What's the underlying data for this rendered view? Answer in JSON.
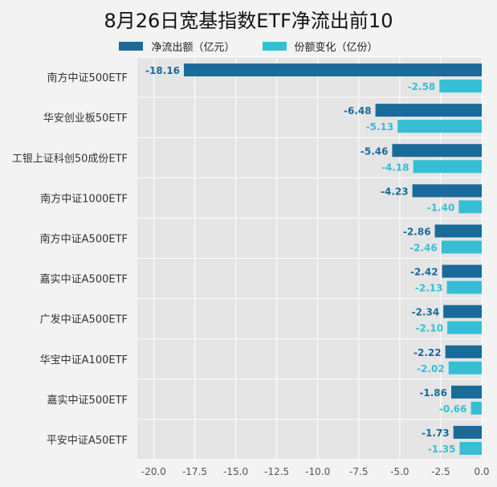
{
  "chart_data": {
    "type": "bar",
    "orientation": "horizontal",
    "title": "8月26日宽基指数ETF净流出前10",
    "categories": [
      "南方中证500ETF",
      "华安创业板50ETF",
      "工银上证科创50成份ETF",
      "南方中证1000ETF",
      "南方中证A500ETF",
      "嘉实中证A500ETF",
      "广发中证A500ETF",
      "华宝中证A100ETF",
      "嘉实中证500ETF",
      "平安中证A50ETF"
    ],
    "series": [
      {
        "name": "净流出额（亿元）",
        "color": "#1a6a9a",
        "values": [
          -18.16,
          -6.48,
          -5.46,
          -4.23,
          -2.86,
          -2.42,
          -2.34,
          -2.22,
          -1.86,
          -1.73
        ]
      },
      {
        "name": "份额变化（亿份）",
        "color": "#36bfd4",
        "values": [
          -2.58,
          -5.13,
          -4.18,
          -1.4,
          -2.46,
          -2.13,
          -2.1,
          -2.02,
          -0.66,
          -1.35
        ]
      }
    ],
    "xlim": [
      -21,
      0
    ],
    "xticks": [
      "-20.0",
      "-17.5",
      "-15.0",
      "-12.5",
      "-10.0",
      "-7.5",
      "-5.0",
      "-2.5",
      "0.0"
    ],
    "grid": true,
    "legend_position": "top"
  }
}
